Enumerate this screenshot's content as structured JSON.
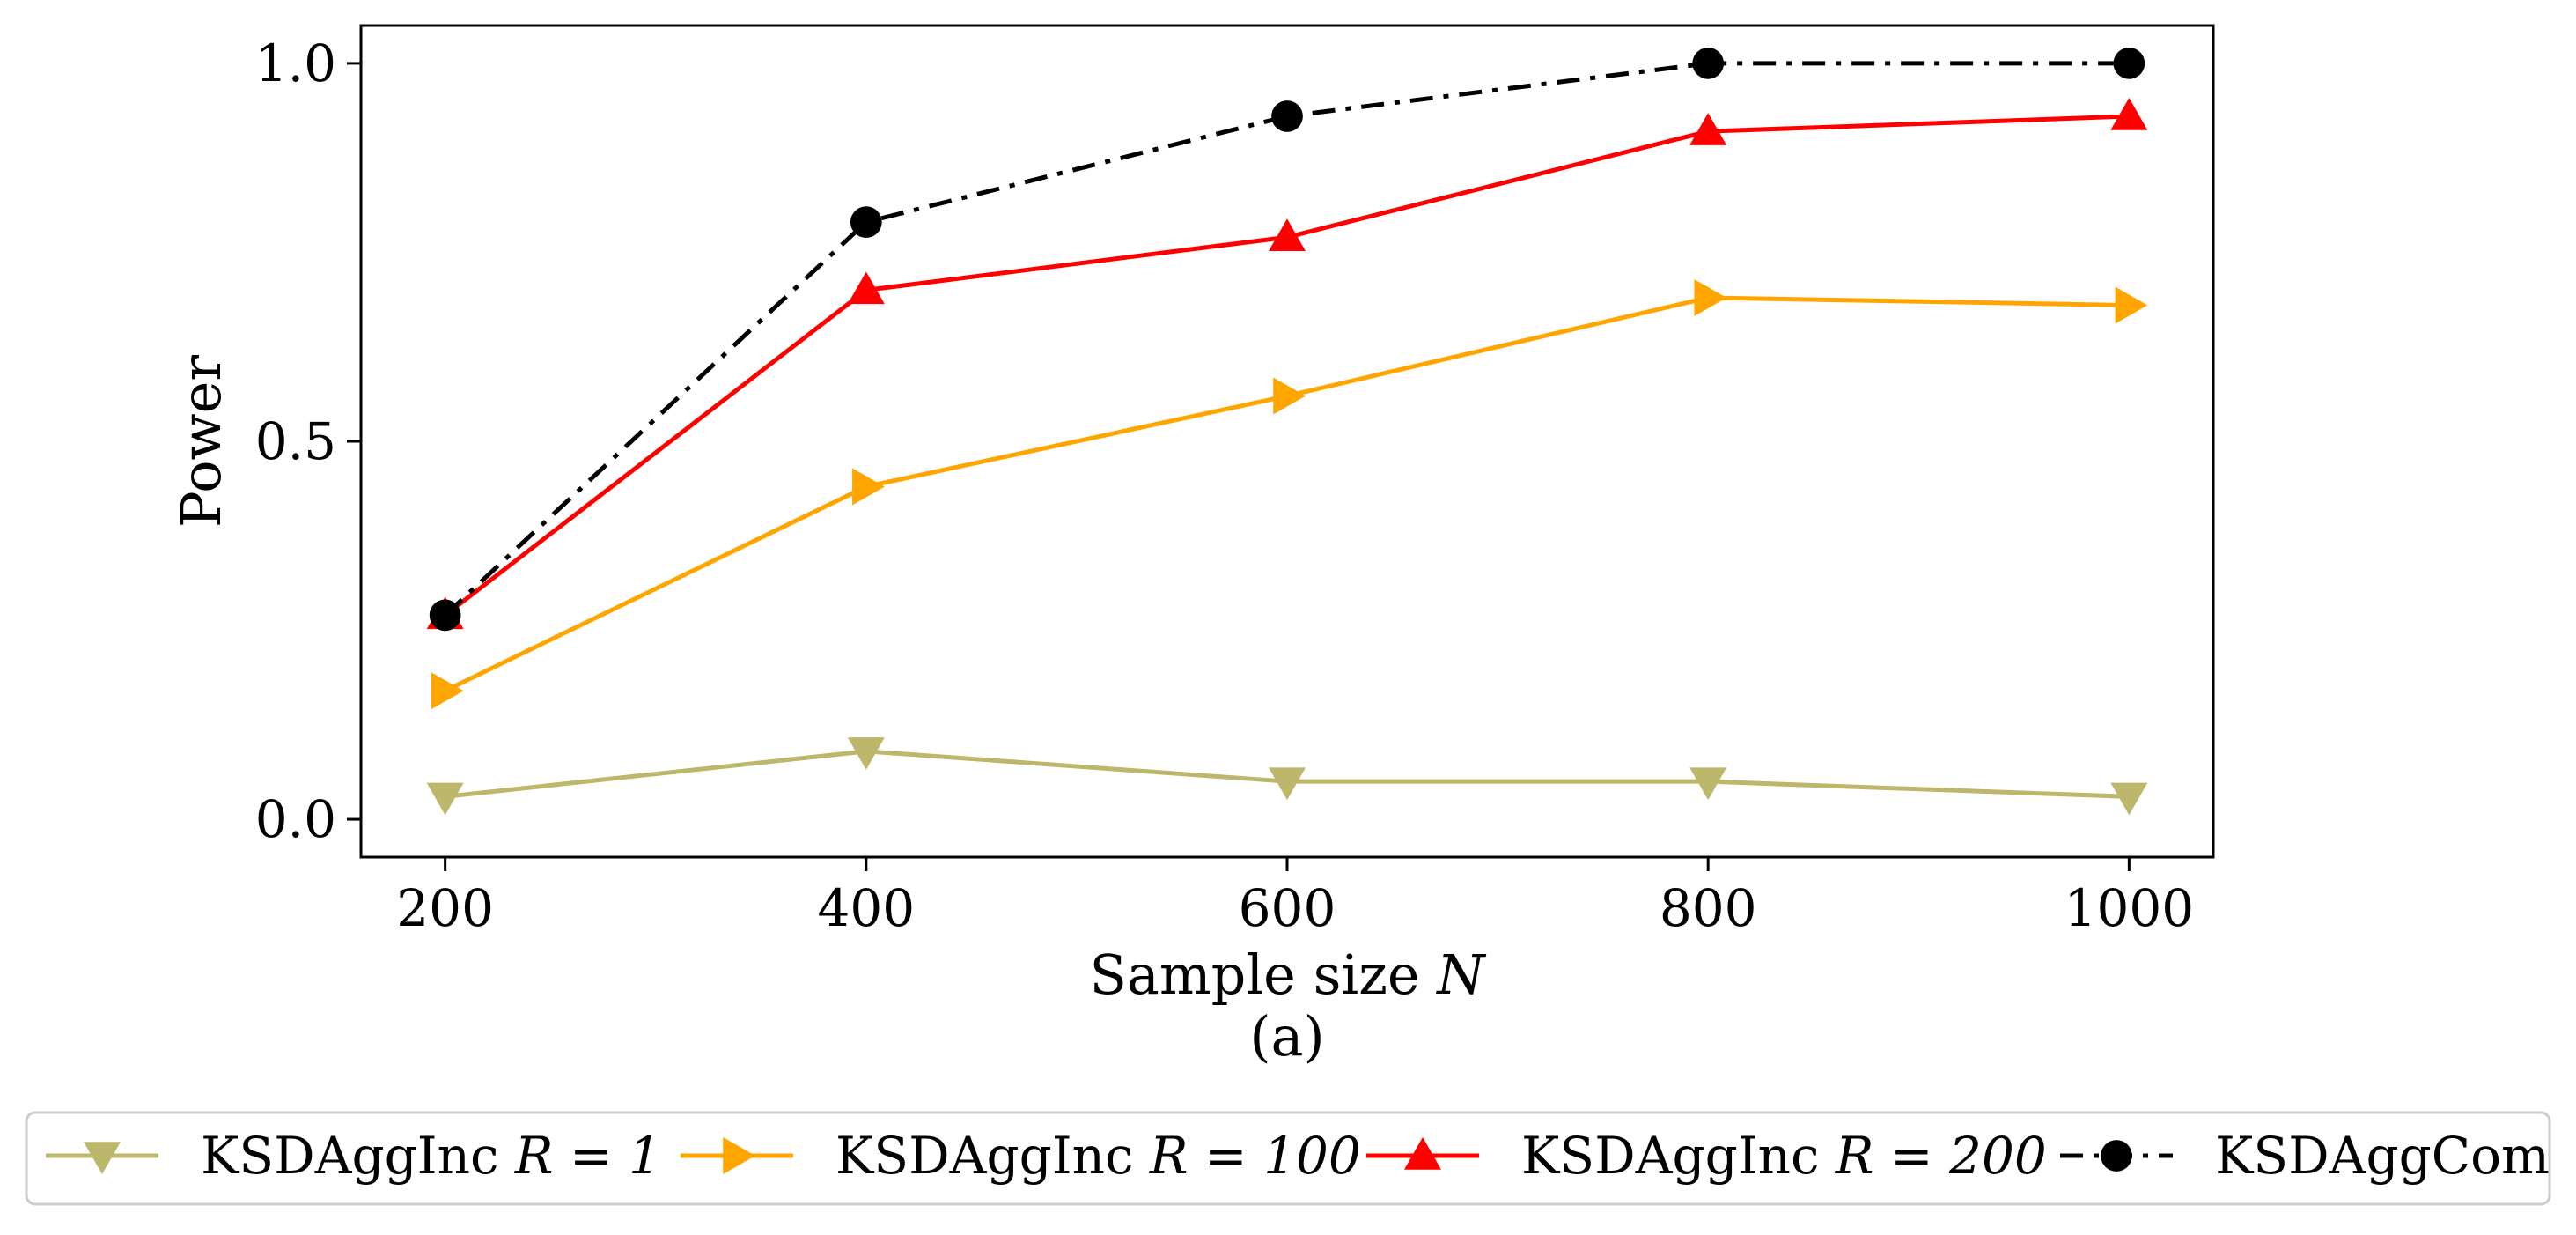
{
  "chart_data": {
    "type": "line",
    "title": "",
    "caption": "(a)",
    "xlabel": "Sample size N",
    "ylabel": "Power",
    "x": [
      200,
      400,
      600,
      800,
      1000
    ],
    "xticks": [
      200,
      400,
      600,
      800,
      1000
    ],
    "xtick_labels": [
      "200",
      "400",
      "600",
      "800",
      "1000"
    ],
    "yticks": [
      0.0,
      0.5,
      1.0
    ],
    "ytick_labels": [
      "0.0",
      "0.5",
      "1.0"
    ],
    "xlim": [
      160,
      1040
    ],
    "ylim": [
      -0.05,
      1.05
    ],
    "grid": false,
    "legend_position": "bottom",
    "series": [
      {
        "name": "KSDAggInc R = 1",
        "label_text": "KSDAggInc",
        "label_math": "R = 1",
        "values": [
          0.03,
          0.09,
          0.05,
          0.05,
          0.03
        ],
        "color": "#BDB76B",
        "marker": "triangle-down",
        "linestyle": "solid"
      },
      {
        "name": "KSDAggInc R = 100",
        "label_text": "KSDAggInc",
        "label_math": "R = 100",
        "values": [
          0.17,
          0.44,
          0.56,
          0.69,
          0.68
        ],
        "color": "#FFA500",
        "marker": "triangle-right",
        "linestyle": "solid"
      },
      {
        "name": "KSDAggInc R = 200",
        "label_text": "KSDAggInc",
        "label_math": "R = 200",
        "values": [
          0.27,
          0.7,
          0.77,
          0.91,
          0.93
        ],
        "color": "#FF0000",
        "marker": "triangle-up",
        "linestyle": "solid"
      },
      {
        "name": "KSDAggCom",
        "label_text": "KSDAggCom",
        "label_math": "",
        "values": [
          0.27,
          0.79,
          0.93,
          1.0,
          1.0
        ],
        "color": "#000000",
        "marker": "circle",
        "linestyle": "dashdot"
      }
    ]
  }
}
